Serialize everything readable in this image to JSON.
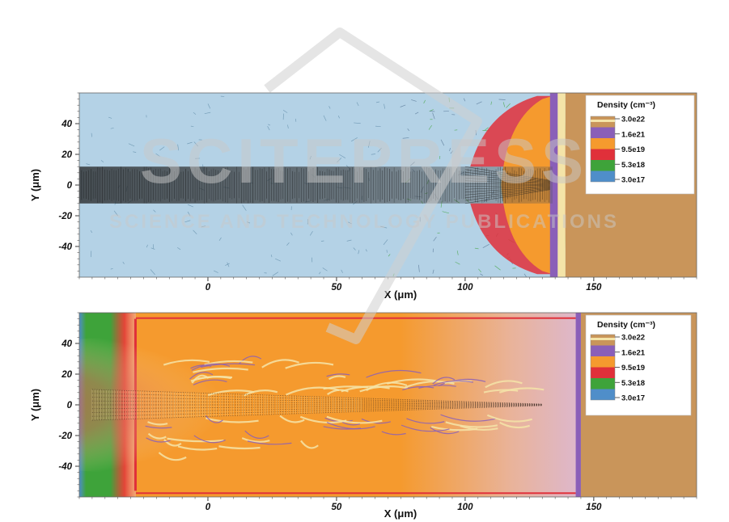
{
  "watermark": {
    "line1": "SCITEPRESS",
    "line2": "SCIENCE AND TECHNOLOGY PUBLICATIONS"
  },
  "colors": {
    "blue": "#4f8ec9",
    "green": "#3ea33a",
    "red": "#e0303a",
    "orange": "#f59a2e",
    "purple": "#8a5fb8",
    "brown": "#c9955a",
    "cream": "#f4e4a8",
    "light_blue_bg": "#b4d2e6",
    "lavender_bg": "#d9b9df"
  },
  "chart_data": [
    {
      "type": "heatmap",
      "panel": "top",
      "xlabel": "X (μm)",
      "ylabel": "Y (μm)",
      "xlim": [
        -50,
        190
      ],
      "ylim": [
        -60,
        60
      ],
      "xticks": [
        0,
        50,
        100,
        150
      ],
      "yticks": [
        -40,
        -20,
        0,
        20,
        40
      ],
      "legend": {
        "title": "Density (cm⁻³)",
        "position": "top-right",
        "colors": [
          "#c9955a",
          "#8a5fb8",
          "#f59a2e",
          "#e0303a",
          "#3ea33a",
          "#4f8ec9"
        ],
        "labels": [
          "3.0e22",
          "1.6e21",
          "9.5e19",
          "5.3e18",
          "3.0e17"
        ]
      },
      "features": {
        "background": "light-blue",
        "target_front_x": 136,
        "beam_half_width": 12
      }
    },
    {
      "type": "heatmap",
      "panel": "bottom",
      "xlabel": "X (μm)",
      "ylabel": "Y (μm)",
      "xlim": [
        -50,
        190
      ],
      "ylim": [
        -60,
        60
      ],
      "xticks": [
        0,
        50,
        100,
        150
      ],
      "yticks": [
        -40,
        -20,
        0,
        20,
        40
      ],
      "legend": {
        "title": "Density (cm⁻³)",
        "position": "top-right",
        "colors": [
          "#c9955a",
          "#8a5fb8",
          "#f59a2e",
          "#e0303a",
          "#3ea33a",
          "#4f8ec9"
        ],
        "labels": [
          "3.0e22",
          "1.6e21",
          "9.5e19",
          "5.3e18",
          "3.0e17"
        ]
      },
      "features": {
        "background": "orange",
        "target_front_x": 145,
        "beam_half_width": 10
      }
    }
  ]
}
